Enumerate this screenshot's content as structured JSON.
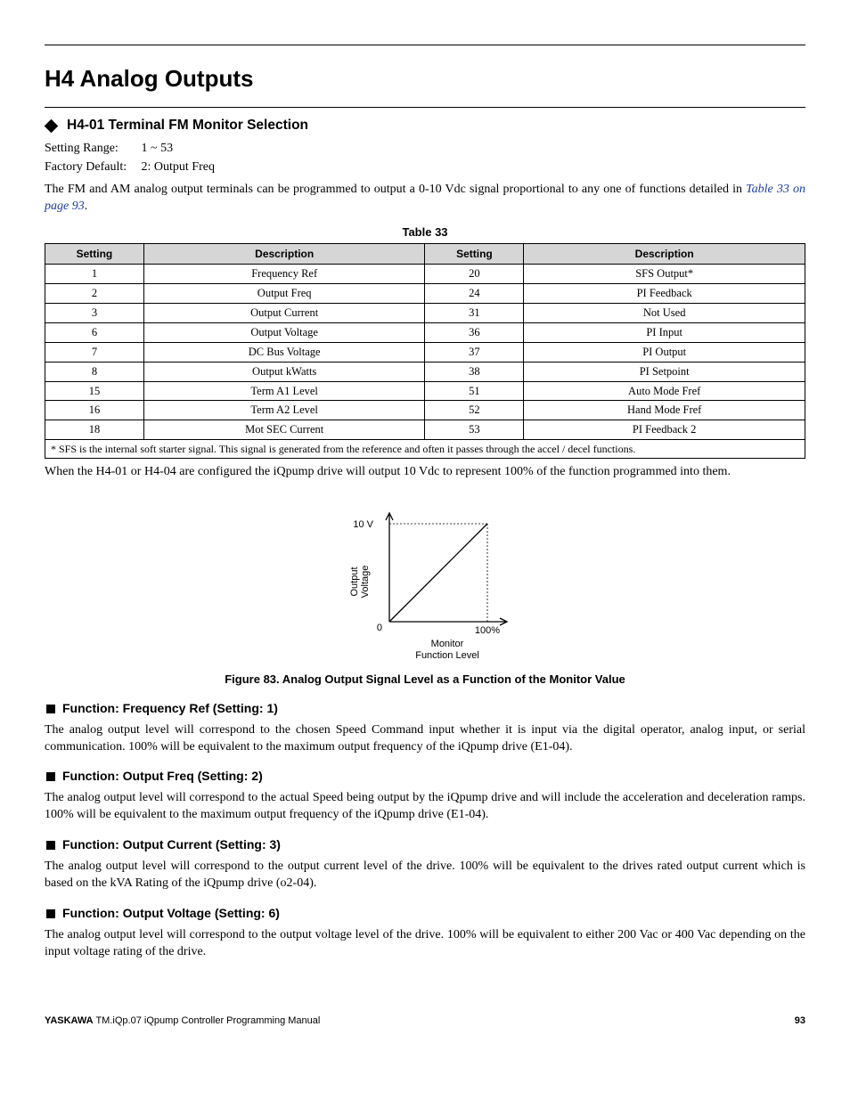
{
  "page": {
    "title": "H4 Analog Outputs",
    "section_title": "H4-01 Terminal FM Monitor Selection",
    "setting_range_label": "Setting Range:",
    "setting_range_value": "1 ~ 53",
    "factory_default_label": "Factory Default:",
    "factory_default_value": "2: Output Freq",
    "intro_para_pre": "The FM and AM analog output terminals can be programmed to output a 0-10 Vdc signal proportional to any one of functions detailed in ",
    "intro_link": "Table 33 on page 93",
    "intro_para_post": ".",
    "table_title": "Table 33",
    "table": {
      "headers": [
        "Setting",
        "Description",
        "Setting",
        "Description"
      ],
      "rows": [
        [
          "1",
          "Frequency Ref",
          "20",
          "SFS Output*"
        ],
        [
          "2",
          "Output Freq",
          "24",
          "PI Feedback"
        ],
        [
          "3",
          "Output Current",
          "31",
          "Not Used"
        ],
        [
          "6",
          "Output Voltage",
          "36",
          "PI Input"
        ],
        [
          "7",
          "DC Bus Voltage",
          "37",
          "PI Output"
        ],
        [
          "8",
          "Output kWatts",
          "38",
          "PI Setpoint"
        ],
        [
          "15",
          "Term A1 Level",
          "51",
          "Auto Mode Fref"
        ],
        [
          "16",
          "Term A2 Level",
          "52",
          "Hand Mode Fref"
        ],
        [
          "18",
          "Mot SEC Current",
          "53",
          "PI Feedback 2"
        ]
      ],
      "footnote": "* SFS is the internal soft starter signal. This signal is generated from the reference and often it passes through the accel / decel functions."
    },
    "post_table_para": "When the H4-01 or H4-04 are configured the iQpump drive will output 10 Vdc to represent 100% of the function programmed into them.",
    "chart": {
      "type": "line",
      "y_max_label": "10 V",
      "y_min_label": "0",
      "y_axis_label_line1": "Output",
      "y_axis_label_line2": "Voltage",
      "x_max_label": "100%",
      "x_axis_label_line1": "Monitor",
      "x_axis_label_line2": "Function Level",
      "axis_color": "#000000",
      "line_color": "#000000",
      "guide_color": "#000000",
      "background": "#ffffff"
    },
    "figure_caption": "Figure 83.  Analog Output Signal Level as a Function of the Monitor Value",
    "functions": [
      {
        "title": "Function: Frequency Ref (Setting: 1)",
        "body": "The analog output level will correspond to the chosen Speed Command input whether it is input via the digital operator, analog input, or serial communication. 100% will be equivalent to the maximum output frequency of the iQpump drive (E1-04)."
      },
      {
        "title": "Function: Output Freq (Setting: 2)",
        "body": "The analog output level will correspond to the actual Speed being output by the iQpump drive and will include the acceleration and deceleration ramps. 100% will be equivalent to the maximum output frequency of the iQpump drive (E1-04)."
      },
      {
        "title": "Function: Output Current (Setting: 3)",
        "body": "The analog output level will correspond to the output current level of the drive. 100% will be equivalent to the drives rated output current which is based on the kVA Rating of the iQpump drive (o2-04)."
      },
      {
        "title": "Function: Output Voltage (Setting: 6)",
        "body": "The analog output level will correspond to the output voltage level of the drive. 100% will be equivalent to either 200 Vac or 400 Vac depending on the input voltage rating of the drive."
      }
    ],
    "footer": {
      "brand": "YASKAWA",
      "doc": " TM.iQp.07 iQpump Controller Programming Manual",
      "page_no": "93"
    }
  }
}
